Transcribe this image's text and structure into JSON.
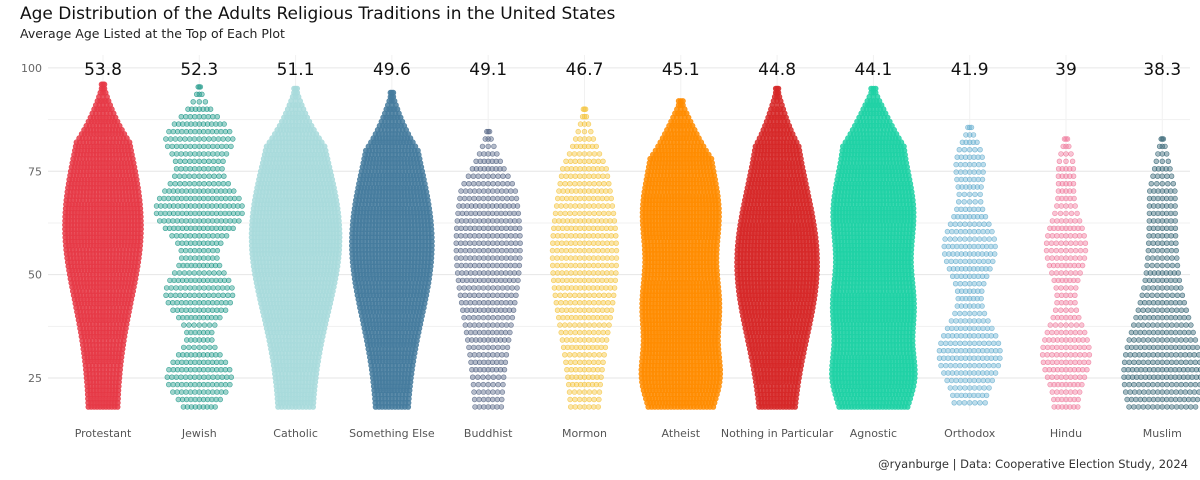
{
  "chart_data": {
    "type": "beeswarm",
    "title": "Age Distribution of the Adults Religious Traditions in the United States",
    "subtitle": "Average Age Listed at the Top of Each Plot",
    "caption": "@ryanburge | Data: Cooperative Election Study, 2024",
    "xlabel": "",
    "ylabel": "",
    "ylim": [
      18,
      100
    ],
    "yticks": [
      25,
      50,
      75,
      100
    ],
    "grid": true,
    "legend": "none",
    "categories": [
      "Protestant",
      "Jewish",
      "Catholic",
      "Something Else",
      "Buddhist",
      "Mormon",
      "Atheist",
      "Nothing in Particular",
      "Agnostic",
      "Orthodox",
      "Hindu",
      "Muslim"
    ],
    "average_age": [
      53.8,
      52.3,
      51.1,
      49.6,
      49.1,
      46.7,
      45.1,
      44.8,
      44.1,
      41.9,
      39,
      38.3
    ],
    "average_age_labels": [
      "53.8",
      "52.3",
      "51.1",
      "49.6",
      "49.1",
      "46.7",
      "45.1",
      "44.8",
      "44.1",
      "41.9",
      "39",
      "38.3"
    ],
    "age_range": [
      [
        18,
        96
      ],
      [
        18,
        96
      ],
      [
        18,
        95
      ],
      [
        18,
        94
      ],
      [
        18,
        85
      ],
      [
        18,
        90
      ],
      [
        18,
        92
      ],
      [
        18,
        95
      ],
      [
        18,
        95
      ],
      [
        19,
        86
      ],
      [
        18,
        83
      ],
      [
        18,
        84
      ]
    ],
    "colors": [
      "#e63946",
      "#2a9d8f",
      "#a8dadc",
      "#457b9d",
      "#5c6b8a",
      "#f4c542",
      "#ff8c00",
      "#d62828",
      "#1fd1a5",
      "#6fb3d2",
      "#ef7fa0",
      "#3d6b7a"
    ]
  }
}
